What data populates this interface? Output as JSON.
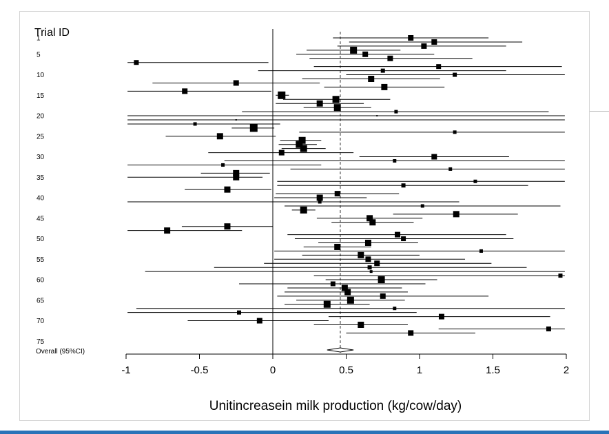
{
  "colors": {
    "bottom_bar": "#2a73b8",
    "ink": "#000000",
    "frame": "#d4d4d4"
  },
  "chart_data": {
    "type": "forest",
    "title": "",
    "ylabel": "Trial ID",
    "xlabel": "Unitincreasein milk production (kg/cow/day)",
    "xlim": [
      -1,
      2
    ],
    "xticks": [
      -1,
      -0.5,
      0,
      0.5,
      1,
      1.5,
      2
    ],
    "xtick_labels": [
      "-1",
      "-0.5",
      "0",
      "0.5",
      "1",
      "1.5",
      "2"
    ],
    "ytick_labels": [
      "1",
      "5",
      "10",
      "15",
      "20",
      "25",
      "30",
      "35",
      "40",
      "45",
      "50",
      "55",
      "60",
      "65",
      "70",
      "75"
    ],
    "ytick_trials": [
      1,
      5,
      10,
      15,
      20,
      25,
      30,
      35,
      40,
      45,
      50,
      55,
      60,
      65,
      70,
      75
    ],
    "reference_line": 0,
    "pooled_line": 0.46,
    "trials": [
      {
        "id": 1,
        "est": 0.94,
        "lo": 0.41,
        "hi": 1.47,
        "w": 8
      },
      {
        "id": 2,
        "est": 1.1,
        "lo": 0.52,
        "hi": 1.7,
        "w": 8
      },
      {
        "id": 3,
        "est": 1.03,
        "lo": 0.44,
        "hi": 1.59,
        "w": 8
      },
      {
        "id": 4,
        "est": 0.55,
        "lo": 0.23,
        "hi": 0.87,
        "w": 10
      },
      {
        "id": 5,
        "est": 0.63,
        "lo": 0.16,
        "hi": 1.1,
        "w": 8
      },
      {
        "id": 6,
        "est": 0.8,
        "lo": 0.25,
        "hi": 1.36,
        "w": 8
      },
      {
        "id": 7,
        "est": -0.93,
        "lo": -0.99,
        "hi": -0.03,
        "w": 7
      },
      {
        "id": 8,
        "est": 1.13,
        "lo": 0.28,
        "hi": 1.97,
        "w": 7
      },
      {
        "id": 9,
        "est": 0.75,
        "lo": -0.1,
        "hi": 1.59,
        "w": 6
      },
      {
        "id": 10,
        "est": 1.24,
        "lo": 0.5,
        "hi": 1.99,
        "w": 6
      },
      {
        "id": 11,
        "est": 0.67,
        "lo": 0.2,
        "hi": 1.14,
        "w": 9
      },
      {
        "id": 12,
        "est": -0.25,
        "lo": -0.82,
        "hi": 0.32,
        "w": 8
      },
      {
        "id": 13,
        "est": 0.76,
        "lo": 0.35,
        "hi": 1.17,
        "w": 9
      },
      {
        "id": 14,
        "est": -0.6,
        "lo": -0.99,
        "hi": -0.01,
        "w": 8
      },
      {
        "id": 15,
        "est": 0.06,
        "lo": 0.02,
        "hi": 0.11,
        "w": 11
      },
      {
        "id": 16,
        "est": 0.43,
        "lo": 0.07,
        "hi": 0.8,
        "w": 10
      },
      {
        "id": 17,
        "est": 0.32,
        "lo": 0.02,
        "hi": 0.62,
        "w": 9
      },
      {
        "id": 18,
        "est": 0.44,
        "lo": 0.21,
        "hi": 0.67,
        "w": 10
      },
      {
        "id": 19,
        "est": 0.84,
        "lo": -0.21,
        "hi": 1.88,
        "w": 5
      },
      {
        "id": 20,
        "est": 0.71,
        "lo": -0.99,
        "hi": 1.99,
        "w": 2
      },
      {
        "id": 21,
        "est": -0.25,
        "lo": -0.99,
        "hi": 1.99,
        "w": 2
      },
      {
        "id": 22,
        "est": -0.53,
        "lo": -0.99,
        "hi": 0.05,
        "w": 5
      },
      {
        "id": 23,
        "est": -0.13,
        "lo": -0.28,
        "hi": 0.01,
        "w": 11
      },
      {
        "id": 24,
        "est": 1.24,
        "lo": 0.18,
        "hi": 1.99,
        "w": 5
      },
      {
        "id": 25,
        "est": -0.36,
        "lo": -0.73,
        "hi": 0.02,
        "w": 9
      },
      {
        "id": 26,
        "est": 0.2,
        "lo": 0.05,
        "hi": 0.33,
        "w": 10
      },
      {
        "id": 27,
        "est": 0.18,
        "lo": 0.04,
        "hi": 0.3,
        "w": 10
      },
      {
        "id": 28,
        "est": 0.21,
        "lo": 0.06,
        "hi": 0.36,
        "w": 10
      },
      {
        "id": 29,
        "est": 0.06,
        "lo": -0.44,
        "hi": 0.55,
        "w": 8
      },
      {
        "id": 30,
        "est": 1.1,
        "lo": 0.59,
        "hi": 1.61,
        "w": 8
      },
      {
        "id": 31,
        "est": 0.83,
        "lo": -0.33,
        "hi": 1.99,
        "w": 5
      },
      {
        "id": 32,
        "est": -0.34,
        "lo": -0.99,
        "hi": 0.33,
        "w": 5
      },
      {
        "id": 33,
        "est": 1.21,
        "lo": 0.12,
        "hi": 1.99,
        "w": 5
      },
      {
        "id": 34,
        "est": -0.25,
        "lo": -0.49,
        "hi": -0.02,
        "w": 9
      },
      {
        "id": 35,
        "est": -0.25,
        "lo": -0.99,
        "hi": -0.07,
        "w": 9
      },
      {
        "id": 36,
        "est": 1.38,
        "lo": 0.03,
        "hi": 1.99,
        "w": 5
      },
      {
        "id": 37,
        "est": 0.89,
        "lo": 0.03,
        "hi": 1.74,
        "w": 6
      },
      {
        "id": 38,
        "est": -0.31,
        "lo": -0.6,
        "hi": -0.01,
        "w": 9
      },
      {
        "id": 39,
        "est": 0.44,
        "lo": 0.02,
        "hi": 0.86,
        "w": 8
      },
      {
        "id": 40,
        "est": 0.32,
        "lo": 0.01,
        "hi": 0.64,
        "w": 9
      },
      {
        "id": 41,
        "est": 0.32,
        "lo": -0.99,
        "hi": 1.27,
        "w": 5
      },
      {
        "id": 42,
        "est": 1.02,
        "lo": 0.08,
        "hi": 1.96,
        "w": 5
      },
      {
        "id": 43,
        "est": 0.21,
        "lo": 0.13,
        "hi": 0.29,
        "w": 10
      },
      {
        "id": 44,
        "est": 1.25,
        "lo": 0.82,
        "hi": 1.67,
        "w": 9
      },
      {
        "id": 45,
        "est": 0.66,
        "lo": 0.3,
        "hi": 1.02,
        "w": 9
      },
      {
        "id": 46,
        "est": 0.68,
        "lo": 0.4,
        "hi": 0.96,
        "w": 9
      },
      {
        "id": 47,
        "est": -0.31,
        "lo": -0.62,
        "hi": 0.0,
        "w": 9
      },
      {
        "id": 48,
        "est": -0.72,
        "lo": -0.99,
        "hi": -0.21,
        "w": 9
      },
      {
        "id": 49,
        "est": 0.85,
        "lo": 0.1,
        "hi": 1.59,
        "w": 8
      },
      {
        "id": 50,
        "est": 0.89,
        "lo": 0.15,
        "hi": 1.64,
        "w": 7
      },
      {
        "id": 51,
        "est": 0.65,
        "lo": 0.31,
        "hi": 0.99,
        "w": 9
      },
      {
        "id": 52,
        "est": 0.44,
        "lo": 0.21,
        "hi": 0.67,
        "w": 9
      },
      {
        "id": 53,
        "est": 1.42,
        "lo": 0.01,
        "hi": 1.99,
        "w": 5
      },
      {
        "id": 54,
        "est": 0.6,
        "lo": 0.2,
        "hi": 1.0,
        "w": 9
      },
      {
        "id": 55,
        "est": 0.65,
        "lo": 0.01,
        "hi": 1.31,
        "w": 8
      },
      {
        "id": 56,
        "est": 0.71,
        "lo": -0.06,
        "hi": 1.49,
        "w": 8
      },
      {
        "id": 57,
        "est": 0.66,
        "lo": -0.4,
        "hi": 1.73,
        "w": 6
      },
      {
        "id": 58,
        "est": 0.67,
        "lo": -0.87,
        "hi": 1.99,
        "w": 4
      },
      {
        "id": 59,
        "est": 1.96,
        "lo": 0.28,
        "hi": 1.99,
        "w": 6
      },
      {
        "id": 60,
        "est": 0.74,
        "lo": 0.36,
        "hi": 1.12,
        "w": 10
      },
      {
        "id": 61,
        "est": 0.41,
        "lo": -0.23,
        "hi": 1.04,
        "w": 7
      },
      {
        "id": 62,
        "est": 0.49,
        "lo": 0.1,
        "hi": 0.88,
        "w": 9
      },
      {
        "id": 63,
        "est": 0.51,
        "lo": 0.08,
        "hi": 0.92,
        "w": 9
      },
      {
        "id": 64,
        "est": 0.75,
        "lo": 0.03,
        "hi": 1.47,
        "w": 8
      },
      {
        "id": 65,
        "est": 0.53,
        "lo": 0.16,
        "hi": 0.9,
        "w": 10
      },
      {
        "id": 66,
        "est": 0.37,
        "lo": 0.08,
        "hi": 0.66,
        "w": 10
      },
      {
        "id": 67,
        "est": 0.83,
        "lo": -0.93,
        "hi": 1.99,
        "w": 5
      },
      {
        "id": 68,
        "est": -0.23,
        "lo": -0.99,
        "hi": 0.98,
        "w": 6
      },
      {
        "id": 69,
        "est": 1.15,
        "lo": 0.38,
        "hi": 1.89,
        "w": 8
      },
      {
        "id": 70,
        "est": -0.09,
        "lo": -0.58,
        "hi": 0.38,
        "w": 8
      },
      {
        "id": 71,
        "est": 0.6,
        "lo": 0.28,
        "hi": 0.92,
        "w": 9
      },
      {
        "id": 72,
        "est": 1.88,
        "lo": 1.13,
        "hi": 1.99,
        "w": 7
      },
      {
        "id": 73,
        "est": 0.94,
        "lo": 0.5,
        "hi": 1.38,
        "w": 8
      }
    ],
    "overall": {
      "label": "Overall (95%CI)",
      "est": 0.46,
      "lo": 0.37,
      "hi": 0.55
    }
  }
}
